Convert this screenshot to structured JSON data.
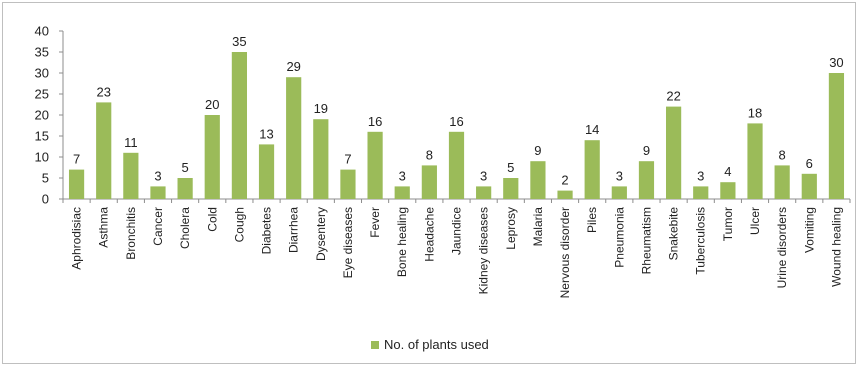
{
  "chart_data": {
    "type": "bar",
    "categories": [
      "Aphrodisiac",
      "Asthma",
      "Bronchitis",
      "Cancer",
      "Cholera",
      "Cold",
      "Cough",
      "Diabetes",
      "Diarrhea",
      "Dysentery",
      "Eye diseases",
      "Fever",
      "Bone healing",
      "Headache",
      "Jaundice",
      "Kidney diseases",
      "Leprosy",
      "Malaria",
      "Nervous disorder",
      "Piles",
      "Pneumonia",
      "Rheumatism",
      "Snakebite",
      "Tuberculosis",
      "Tumor",
      "Ulcer",
      "Urine disorders",
      "Vomiting",
      "Wound healing"
    ],
    "series": [
      {
        "name": "No. of plants used",
        "values": [
          7,
          23,
          11,
          3,
          5,
          20,
          35,
          13,
          29,
          19,
          7,
          16,
          3,
          8,
          16,
          3,
          5,
          9,
          2,
          14,
          3,
          9,
          22,
          3,
          4,
          18,
          8,
          6,
          30
        ]
      }
    ],
    "yticks": [
      "0",
      "5",
      "10",
      "15",
      "20",
      "25",
      "30",
      "35",
      "40"
    ],
    "ylim": [
      0,
      40
    ],
    "grid": false,
    "legend_position": "bottom",
    "bar_color": "#9bbb59"
  }
}
